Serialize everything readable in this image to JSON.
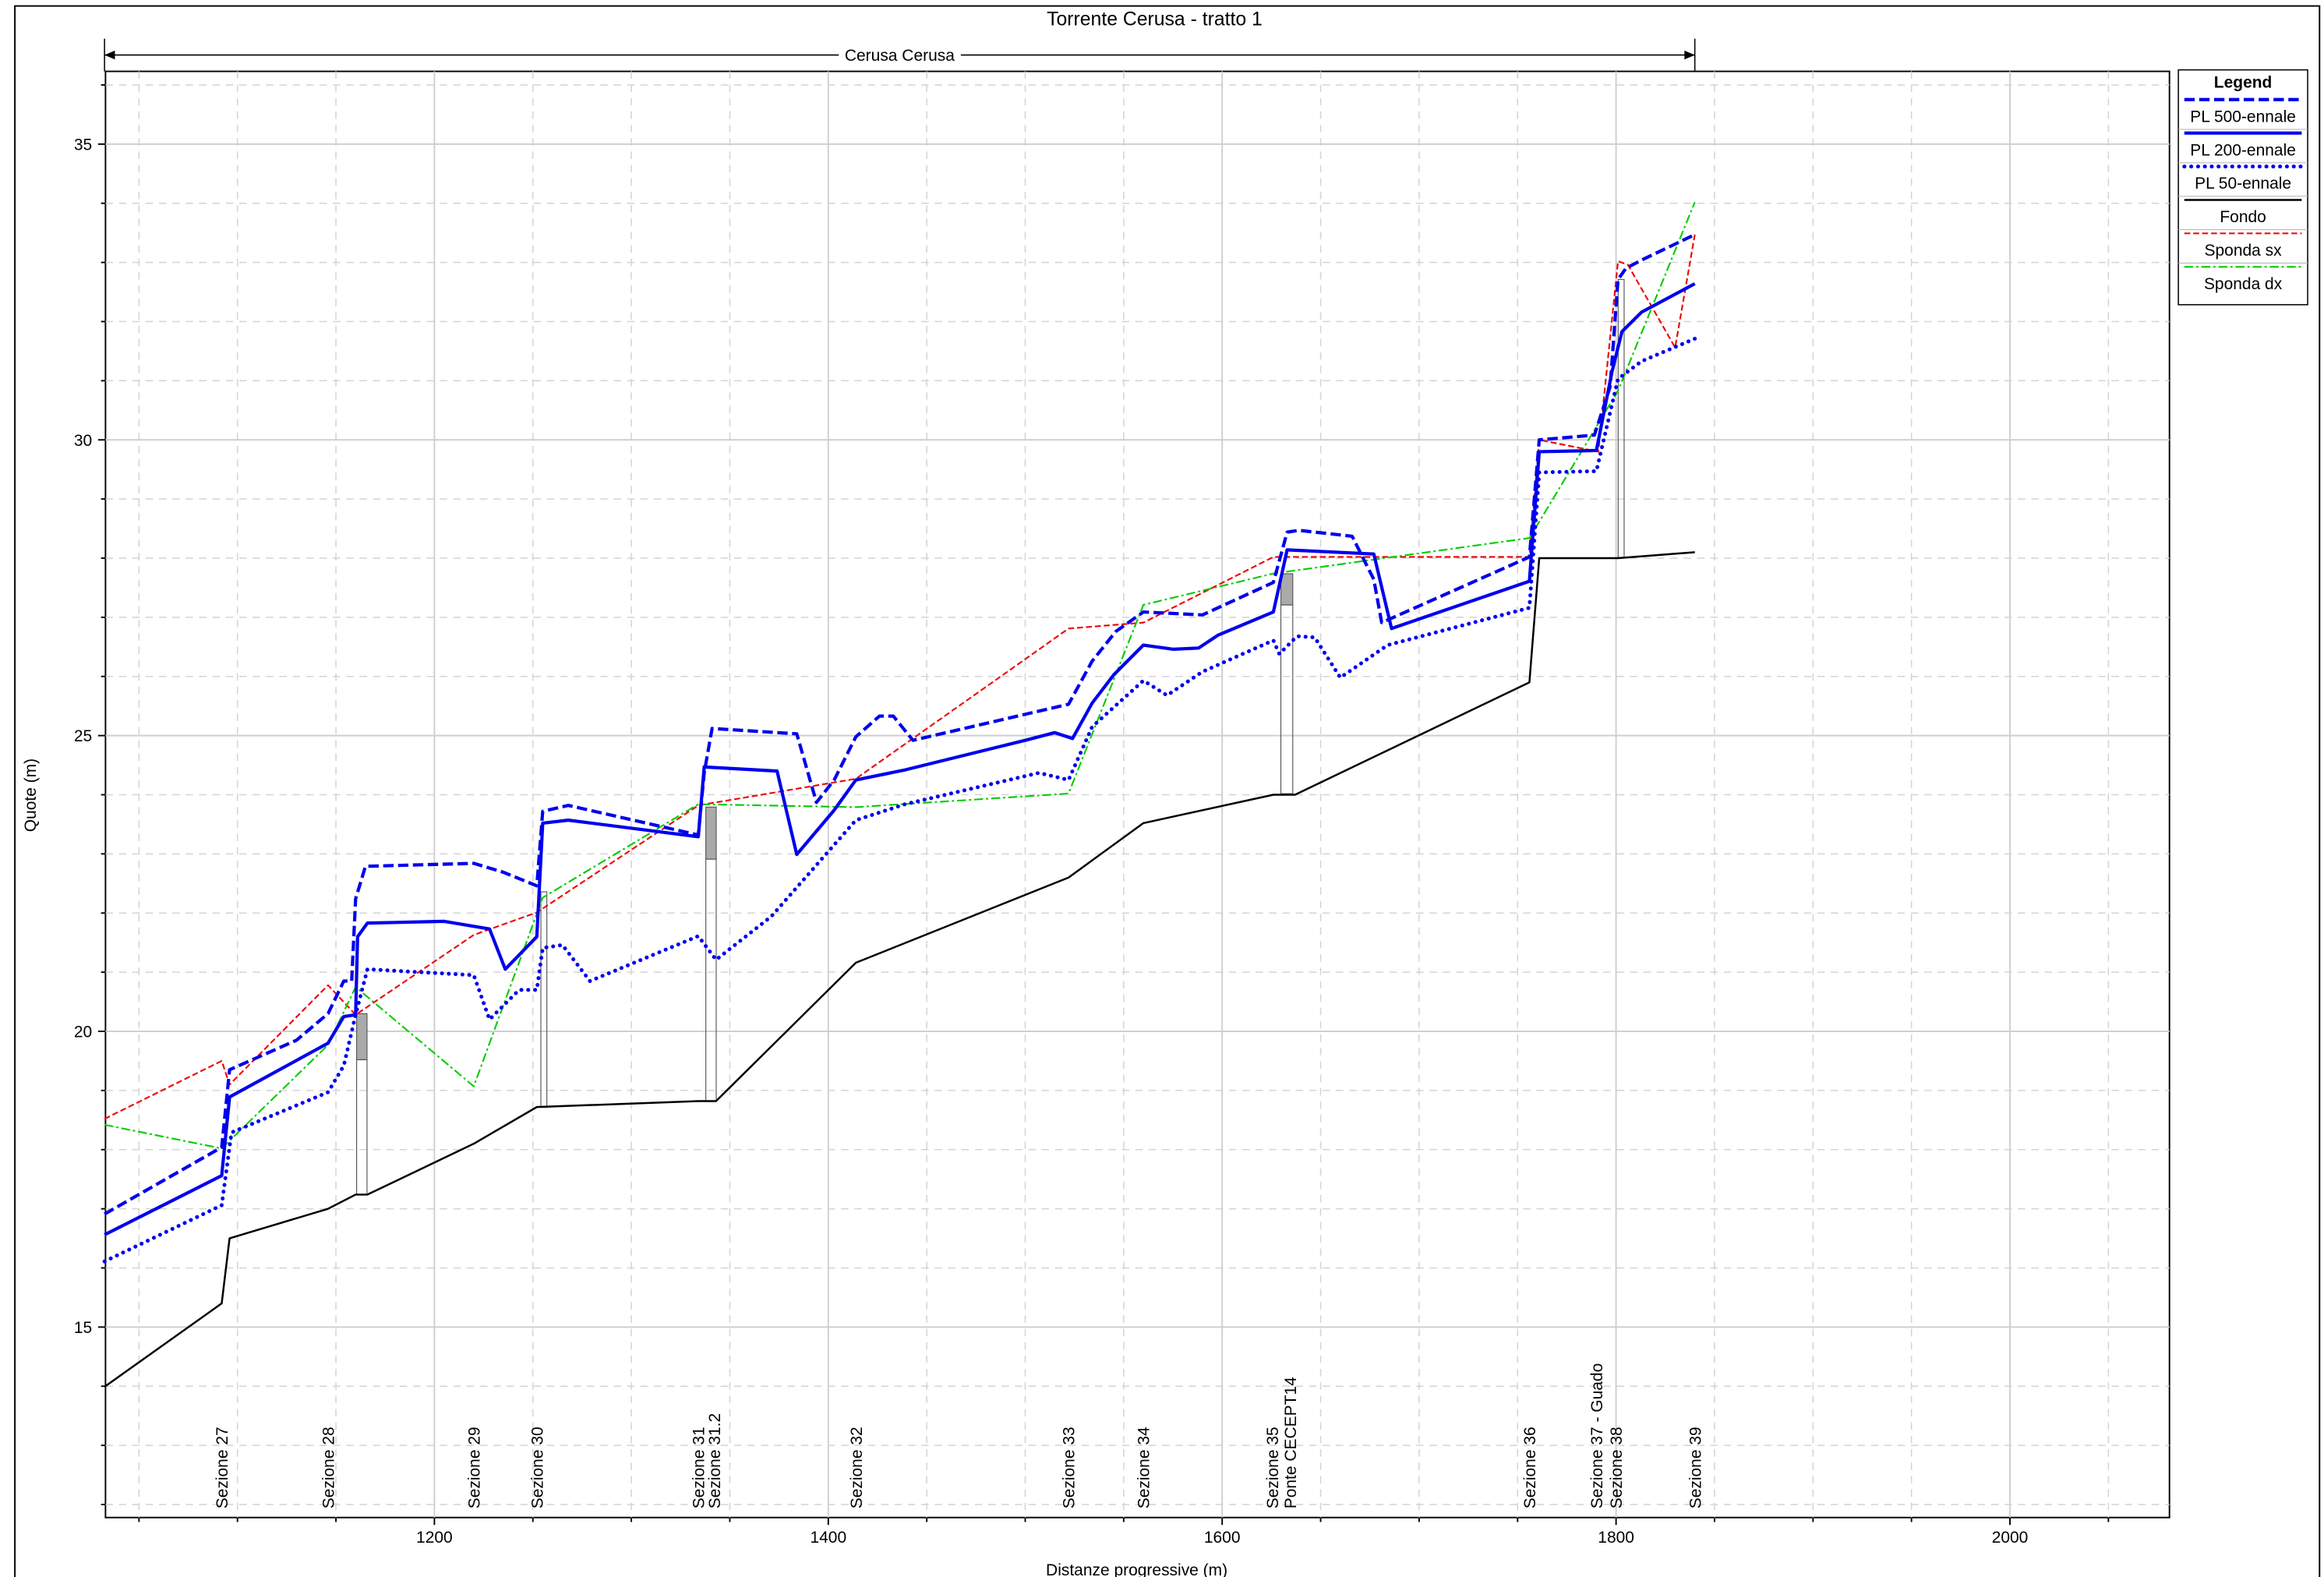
{
  "chart_data": {
    "type": "line",
    "title": "Torrente Cerusa - tratto 1",
    "xlabel": "Distanze progressive (m)",
    "ylabel": "Quote (m)",
    "reach": {
      "label": "Cerusa Cerusa",
      "x": [
        1032.5,
        1840
      ]
    },
    "legend_title": "Legend",
    "legend": "outside right",
    "grid": true,
    "xlim": [
      1033,
      2081
    ],
    "ylim": [
      11.78,
      36.23
    ],
    "xticks": [
      1200,
      1400,
      1600,
      1800,
      2000
    ],
    "yticks": [
      15,
      20,
      25,
      30,
      35
    ],
    "xticks_minor": [
      1050,
      1100,
      1150,
      1250,
      1300,
      1350,
      1450,
      1500,
      1550,
      1650,
      1700,
      1750,
      1850,
      1900,
      1950,
      2050
    ],
    "yticks_minor": [
      12,
      13,
      14,
      16,
      17,
      18,
      19,
      21,
      22,
      23,
      24,
      26,
      27,
      28,
      29,
      31,
      32,
      33,
      34,
      36
    ],
    "sections": [
      {
        "label": [
          "Sezione 27"
        ],
        "x": 1092
      },
      {
        "label": [
          "Sezione 28"
        ],
        "x": 1146
      },
      {
        "label": [
          "Sezione 29"
        ],
        "x": 1220
      },
      {
        "label": [
          "Sezione 30"
        ],
        "x": 1252
      },
      {
        "label": [
          "Sezione 31"
        ],
        "x": 1334
      },
      {
        "label": [
          "Sezione 31.2"
        ],
        "x": 1342
      },
      {
        "label": [
          "Sezione 32"
        ],
        "x": 1414
      },
      {
        "label": [
          "Sezione 33"
        ],
        "x": 1522
      },
      {
        "label": [
          "Sezione 34"
        ],
        "x": 1560
      },
      {
        "label": [
          "Sezione 35",
          "Ponte CECEPT14"
        ],
        "x": 1630
      },
      {
        "label": [
          "Sezione 36"
        ],
        "x": 1756
      },
      {
        "label": [
          "Sezione 37 - Guado"
        ],
        "x": 1790
      },
      {
        "label": [
          "Sezione 38"
        ],
        "x": 1800
      },
      {
        "label": [
          "Sezione 39"
        ],
        "x": 1840
      }
    ],
    "series": [
      {
        "name": "PL 500-ennale",
        "color": "#0000ee",
        "style": "dashed",
        "x": [
          1032.5,
          1092,
          1096,
          1130,
          1146,
          1154,
          1158,
          1160,
          1165,
          1220,
          1235,
          1252,
          1255,
          1268,
          1334,
          1337,
          1341,
          1384,
          1394,
          1403,
          1414,
          1426,
          1433,
          1443,
          1522,
          1534,
          1546,
          1560,
          1590,
          1626,
          1633,
          1639,
          1666,
          1677,
          1681,
          1756,
          1761,
          1789,
          1797,
          1801,
          1805,
          1813,
          1840
        ],
        "values": [
          16.91,
          18.04,
          19.35,
          19.85,
          20.3,
          20.85,
          20.85,
          22.24,
          22.79,
          22.84,
          22.69,
          22.46,
          23.72,
          23.82,
          23.32,
          24.37,
          25.12,
          25.03,
          23.87,
          24.25,
          24.98,
          25.33,
          25.33,
          24.92,
          25.53,
          26.26,
          26.76,
          27.09,
          27.04,
          27.59,
          28.44,
          28.47,
          28.37,
          27.64,
          26.91,
          28.02,
          30.0,
          30.08,
          30.9,
          32.71,
          32.9,
          33.04,
          33.47
        ]
      },
      {
        "name": "PL 200-ennale",
        "color": "#0000ee",
        "style": "solid",
        "x": [
          1032.5,
          1092,
          1096,
          1146,
          1154,
          1160,
          1161,
          1166,
          1205,
          1228,
          1236,
          1252,
          1255,
          1268,
          1334,
          1337,
          1374,
          1384,
          1403,
          1414,
          1439,
          1500,
          1515,
          1524,
          1534,
          1545,
          1560,
          1575,
          1588,
          1598,
          1626,
          1633,
          1677,
          1686,
          1756,
          1761,
          1790,
          1798,
          1803,
          1813,
          1840
        ],
        "values": [
          16.56,
          17.56,
          18.89,
          19.8,
          20.25,
          20.28,
          21.6,
          21.83,
          21.86,
          21.73,
          21.05,
          21.6,
          23.52,
          23.57,
          23.29,
          24.47,
          24.4,
          22.99,
          23.74,
          24.25,
          24.42,
          24.92,
          25.05,
          24.95,
          25.55,
          26.03,
          26.53,
          26.46,
          26.48,
          26.7,
          27.09,
          28.14,
          28.07,
          26.81,
          27.61,
          29.8,
          29.82,
          31.16,
          31.83,
          32.16,
          32.64
        ]
      },
      {
        "name": "PL 50-ennale",
        "color": "#0000ee",
        "style": "dotted",
        "x": [
          1032.5,
          1092,
          1097,
          1146,
          1154,
          1160,
          1166,
          1220,
          1228,
          1243,
          1252,
          1255,
          1265,
          1279,
          1334,
          1343,
          1371,
          1414,
          1439,
          1507,
          1522,
          1534,
          1560,
          1572,
          1590,
          1626,
          1629,
          1638,
          1647,
          1660,
          1684,
          1756,
          1761,
          1790,
          1801,
          1813,
          1840
        ],
        "values": [
          16.11,
          17.06,
          18.29,
          18.97,
          19.42,
          20.28,
          21.05,
          20.95,
          20.2,
          20.7,
          20.7,
          21.41,
          21.46,
          20.85,
          21.61,
          21.21,
          21.94,
          23.57,
          23.84,
          24.37,
          24.25,
          25.15,
          25.93,
          25.68,
          26.08,
          26.61,
          26.38,
          26.68,
          26.66,
          25.98,
          26.53,
          27.16,
          29.45,
          29.47,
          31.03,
          31.33,
          31.71
        ]
      },
      {
        "name": "Fondo",
        "color": "#000000",
        "style": "solid-thin",
        "x": [
          1032.5,
          1092,
          1096,
          1146,
          1160,
          1166,
          1220,
          1252,
          1334,
          1343,
          1414,
          1522,
          1560,
          1626,
          1637,
          1756,
          1761,
          1801,
          1840
        ],
        "values": [
          13.99,
          15.4,
          16.5,
          17.0,
          17.24,
          17.24,
          18.1,
          18.72,
          18.82,
          18.82,
          21.16,
          22.6,
          23.52,
          24.0,
          24.0,
          25.9,
          28.0,
          28.0,
          28.1
        ]
      },
      {
        "name": "Sponda sx",
        "color": "#ee0000",
        "style": "dash-thin",
        "x": [
          1032.5,
          1092,
          1096,
          1146,
          1160,
          1220,
          1252,
          1334,
          1414,
          1522,
          1560,
          1626,
          1756,
          1761,
          1791,
          1801,
          1806,
          1830,
          1840
        ],
        "values": [
          18.52,
          19.5,
          19.1,
          20.78,
          20.28,
          21.63,
          22.01,
          23.82,
          24.27,
          26.81,
          26.91,
          28.02,
          28.02,
          30.0,
          29.8,
          33.02,
          32.96,
          31.56,
          33.47
        ]
      },
      {
        "name": "Sponda dx",
        "color": "#00cc00",
        "style": "dashdot",
        "x": [
          1032.5,
          1092,
          1146,
          1160,
          1220,
          1255,
          1334,
          1414,
          1522,
          1560,
          1626,
          1756,
          1801,
          1840
        ],
        "values": [
          18.42,
          18.02,
          19.77,
          20.75,
          19.07,
          22.26,
          23.84,
          23.79,
          24.02,
          27.21,
          27.74,
          28.34,
          30.83,
          34.02
        ]
      }
    ]
  }
}
